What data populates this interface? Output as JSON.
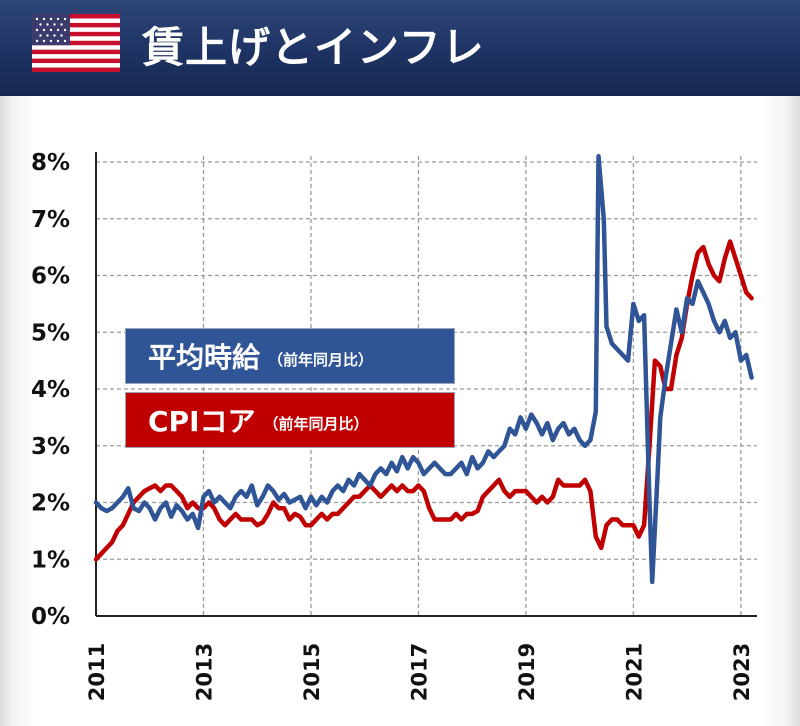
{
  "header": {
    "title": "賃上げとインフレ",
    "flag_icon": "us-flag-icon"
  },
  "chart_data": {
    "type": "line",
    "title": "賃上げとインフレ",
    "xlabel": "",
    "ylabel": "",
    "xlim": [
      2011.0,
      2023.3
    ],
    "ylim": [
      0,
      8
    ],
    "grid": true,
    "x_tick_labels": [
      "2011",
      "2013",
      "2015",
      "2017",
      "2019",
      "2021",
      "2023"
    ],
    "x_ticks": [
      2011,
      2013,
      2015,
      2017,
      2019,
      2021,
      2023
    ],
    "y_tick_labels": [
      "0%",
      "1%",
      "2%",
      "3%",
      "4%",
      "5%",
      "6%",
      "7%",
      "8%"
    ],
    "y_ticks": [
      0,
      1,
      2,
      3,
      4,
      5,
      6,
      7,
      8
    ],
    "legend_placement": "upper-left",
    "series": [
      {
        "name": "平均時給",
        "name_suffix": "（前年同月比）",
        "color": "#2f5597",
        "x": [
          2011.0,
          2011.1,
          2011.2,
          2011.3,
          2011.4,
          2011.5,
          2011.6,
          2011.7,
          2011.8,
          2011.9,
          2012.0,
          2012.1,
          2012.2,
          2012.3,
          2012.4,
          2012.5,
          2012.6,
          2012.7,
          2012.8,
          2012.9,
          2013.0,
          2013.1,
          2013.2,
          2013.3,
          2013.4,
          2013.5,
          2013.6,
          2013.7,
          2013.8,
          2013.9,
          2014.0,
          2014.1,
          2014.2,
          2014.3,
          2014.4,
          2014.5,
          2014.6,
          2014.7,
          2014.8,
          2014.9,
          2015.0,
          2015.1,
          2015.2,
          2015.3,
          2015.4,
          2015.5,
          2015.6,
          2015.7,
          2015.8,
          2015.9,
          2016.0,
          2016.1,
          2016.2,
          2016.3,
          2016.4,
          2016.5,
          2016.6,
          2016.7,
          2016.8,
          2016.9,
          2017.0,
          2017.1,
          2017.2,
          2017.3,
          2017.4,
          2017.5,
          2017.6,
          2017.7,
          2017.8,
          2017.9,
          2018.0,
          2018.1,
          2018.2,
          2018.3,
          2018.4,
          2018.5,
          2018.6,
          2018.7,
          2018.8,
          2018.9,
          2019.0,
          2019.1,
          2019.2,
          2019.3,
          2019.4,
          2019.5,
          2019.6,
          2019.7,
          2019.8,
          2019.9,
          2020.0,
          2020.1,
          2020.2,
          2020.3,
          2020.35,
          2020.45,
          2020.5,
          2020.6,
          2020.7,
          2020.8,
          2020.9,
          2021.0,
          2021.1,
          2021.2,
          2021.3,
          2021.35,
          2021.45,
          2021.5,
          2021.6,
          2021.7,
          2021.8,
          2021.9,
          2022.0,
          2022.1,
          2022.2,
          2022.3,
          2022.4,
          2022.5,
          2022.6,
          2022.7,
          2022.8,
          2022.9,
          2023.0,
          2023.1,
          2023.2
        ],
        "values": [
          2.0,
          1.9,
          1.85,
          1.9,
          2.0,
          2.1,
          2.25,
          1.9,
          1.85,
          2.0,
          1.9,
          1.7,
          1.9,
          2.0,
          1.75,
          1.95,
          1.85,
          1.7,
          1.8,
          1.55,
          2.1,
          2.2,
          2.0,
          2.1,
          2.0,
          1.9,
          2.1,
          2.2,
          2.1,
          2.3,
          1.95,
          2.1,
          2.3,
          2.2,
          2.05,
          2.15,
          2.0,
          2.05,
          2.1,
          1.9,
          2.1,
          1.95,
          2.1,
          2.0,
          2.2,
          2.3,
          2.2,
          2.4,
          2.3,
          2.5,
          2.4,
          2.3,
          2.5,
          2.6,
          2.5,
          2.7,
          2.55,
          2.8,
          2.6,
          2.8,
          2.7,
          2.5,
          2.6,
          2.7,
          2.6,
          2.5,
          2.5,
          2.6,
          2.7,
          2.5,
          2.8,
          2.6,
          2.7,
          2.9,
          2.8,
          2.9,
          3.0,
          3.3,
          3.2,
          3.5,
          3.3,
          3.55,
          3.4,
          3.2,
          3.4,
          3.1,
          3.3,
          3.4,
          3.2,
          3.3,
          3.1,
          3.0,
          3.1,
          3.6,
          8.1,
          7.0,
          5.1,
          4.8,
          4.7,
          4.6,
          4.5,
          5.5,
          5.2,
          5.3,
          2.0,
          0.6,
          2.5,
          3.5,
          4.2,
          4.8,
          5.4,
          5.0,
          5.6,
          5.5,
          5.9,
          5.7,
          5.5,
          5.2,
          5.0,
          5.2,
          4.9,
          5.0,
          4.5,
          4.6,
          4.2
        ]
      },
      {
        "name": "CPIコア",
        "name_suffix": "（前年同月比）",
        "color": "#c00000",
        "x": [
          2011.0,
          2011.1,
          2011.2,
          2011.3,
          2011.4,
          2011.5,
          2011.6,
          2011.7,
          2011.8,
          2011.9,
          2012.0,
          2012.1,
          2012.2,
          2012.3,
          2012.4,
          2012.5,
          2012.6,
          2012.7,
          2012.8,
          2012.9,
          2013.0,
          2013.1,
          2013.2,
          2013.3,
          2013.4,
          2013.5,
          2013.6,
          2013.7,
          2013.8,
          2013.9,
          2014.0,
          2014.1,
          2014.2,
          2014.3,
          2014.4,
          2014.5,
          2014.6,
          2014.7,
          2014.8,
          2014.9,
          2015.0,
          2015.1,
          2015.2,
          2015.3,
          2015.4,
          2015.5,
          2015.6,
          2015.7,
          2015.8,
          2015.9,
          2016.0,
          2016.1,
          2016.2,
          2016.3,
          2016.4,
          2016.5,
          2016.6,
          2016.7,
          2016.8,
          2016.9,
          2017.0,
          2017.1,
          2017.2,
          2017.3,
          2017.4,
          2017.5,
          2017.6,
          2017.7,
          2017.8,
          2017.9,
          2018.0,
          2018.1,
          2018.2,
          2018.3,
          2018.4,
          2018.5,
          2018.6,
          2018.7,
          2018.8,
          2018.9,
          2019.0,
          2019.1,
          2019.2,
          2019.3,
          2019.4,
          2019.5,
          2019.6,
          2019.7,
          2019.8,
          2019.9,
          2020.0,
          2020.1,
          2020.2,
          2020.3,
          2020.4,
          2020.5,
          2020.6,
          2020.7,
          2020.8,
          2020.9,
          2021.0,
          2021.1,
          2021.2,
          2021.3,
          2021.4,
          2021.5,
          2021.6,
          2021.7,
          2021.8,
          2021.9,
          2022.0,
          2022.1,
          2022.2,
          2022.3,
          2022.4,
          2022.5,
          2022.6,
          2022.7,
          2022.8,
          2022.9,
          2023.0,
          2023.1,
          2023.2
        ],
        "values": [
          1.0,
          1.1,
          1.2,
          1.3,
          1.5,
          1.6,
          1.8,
          2.0,
          2.1,
          2.2,
          2.25,
          2.3,
          2.2,
          2.3,
          2.3,
          2.2,
          2.1,
          1.9,
          2.0,
          1.9,
          1.9,
          2.0,
          1.9,
          1.7,
          1.6,
          1.7,
          1.8,
          1.7,
          1.7,
          1.7,
          1.6,
          1.65,
          1.8,
          2.0,
          1.9,
          1.9,
          1.7,
          1.8,
          1.75,
          1.6,
          1.6,
          1.7,
          1.8,
          1.7,
          1.8,
          1.8,
          1.9,
          2.0,
          2.1,
          2.1,
          2.2,
          2.3,
          2.2,
          2.1,
          2.2,
          2.3,
          2.2,
          2.3,
          2.2,
          2.2,
          2.3,
          2.2,
          1.9,
          1.7,
          1.7,
          1.7,
          1.7,
          1.8,
          1.7,
          1.8,
          1.8,
          1.85,
          2.1,
          2.2,
          2.3,
          2.4,
          2.2,
          2.1,
          2.2,
          2.2,
          2.2,
          2.1,
          2.0,
          2.1,
          2.0,
          2.1,
          2.4,
          2.3,
          2.3,
          2.3,
          2.3,
          2.4,
          2.2,
          1.4,
          1.2,
          1.6,
          1.7,
          1.7,
          1.6,
          1.6,
          1.6,
          1.4,
          1.6,
          3.0,
          4.5,
          4.4,
          4.0,
          4.0,
          4.6,
          4.9,
          5.5,
          6.0,
          6.4,
          6.5,
          6.2,
          6.0,
          5.9,
          6.3,
          6.6,
          6.3,
          6.0,
          5.7,
          5.6
        ]
      }
    ]
  }
}
